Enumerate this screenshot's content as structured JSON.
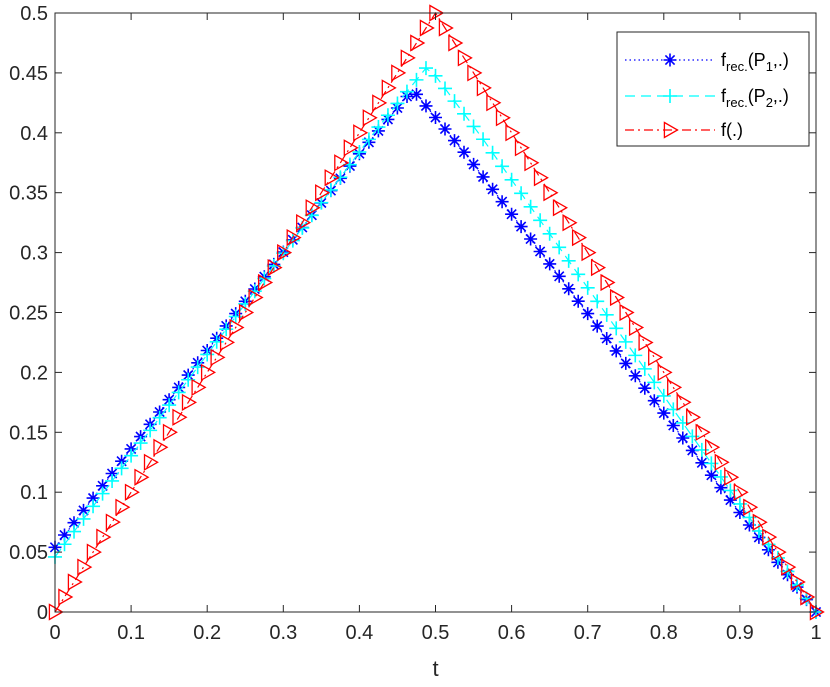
{
  "chart_data": {
    "type": "line",
    "xlabel": "t",
    "ylabel": "",
    "xlim": [
      0,
      1
    ],
    "ylim": [
      0,
      0.5
    ],
    "xticks": [
      0,
      0.1,
      0.2,
      0.3,
      0.4,
      0.5,
      0.6,
      0.7,
      0.8,
      0.9,
      1
    ],
    "xtick_labels": [
      "0",
      "0.1",
      "0.2",
      "0.3",
      "0.4",
      "0.5",
      "0.6",
      "0.7",
      "0.8",
      "0.9",
      "1"
    ],
    "yticks": [
      0,
      0.05,
      0.1,
      0.15,
      0.2,
      0.25,
      0.3,
      0.35,
      0.4,
      0.45,
      0.5
    ],
    "ytick_labels": [
      "0",
      "0.05",
      "0.1",
      "0.15",
      "0.2",
      "0.25",
      "0.3",
      "0.35",
      "0.4",
      "0.45",
      "0.5"
    ],
    "grid": false,
    "legend_position": "top-right",
    "samples": 81,
    "series": [
      {
        "name": "f_rec.(P_1,.)",
        "legend_main": "f",
        "legend_sub": "rec.",
        "legend_tail_pre": "(P",
        "legend_tail_sub": "1",
        "legend_tail_post": ",.)",
        "color": "#0000ff",
        "line_style": "dotted",
        "marker": "asterisk",
        "shape": "smoothed-triangle",
        "start": 0.054,
        "peak_t": 0.47,
        "peak": 0.44,
        "end": 0.0
      },
      {
        "name": "f_rec.(P_2,.)",
        "legend_main": "f",
        "legend_sub": "rec.",
        "legend_tail_pre": "(P",
        "legend_tail_sub": "2",
        "legend_tail_post": ",.)",
        "color": "#00ffff",
        "line_style": "dashed",
        "marker": "plus",
        "shape": "smoothed-triangle",
        "start": 0.046,
        "peak_t": 0.49,
        "peak": 0.46,
        "end": 0.0
      },
      {
        "name": "f(.)",
        "legend_main": "f(.)",
        "legend_sub": "",
        "legend_tail_pre": "",
        "legend_tail_sub": "",
        "legend_tail_post": "",
        "color": "#ff0000",
        "line_style": "dashdot",
        "marker": "triangle-right",
        "shape": "triangle",
        "start": 0.0,
        "peak_t": 0.5,
        "peak": 0.5,
        "end": 0.0
      }
    ]
  }
}
